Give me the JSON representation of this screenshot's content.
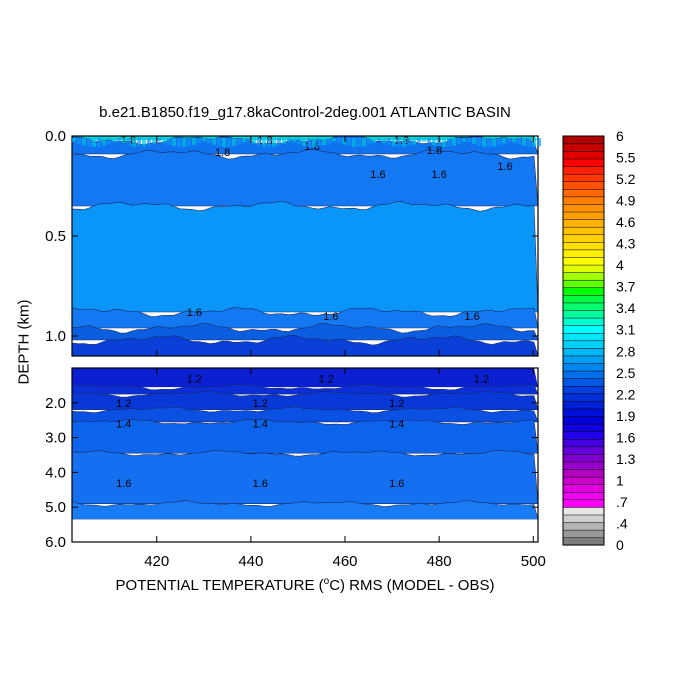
{
  "chart_data": {
    "type": "heatmap",
    "title": "b.e21.B1850.f19_g17.8kaControl-2deg.001 ATLANTIC BASIN",
    "xlabel_prefix": "POTENTIAL TEMPERATURE (",
    "xlabel_sup": "o",
    "xlabel_suffix": "C) RMS (MODEL - OBS)",
    "ylabel": "DEPTH (km)",
    "xlim": [
      402,
      501
    ],
    "xticks": [
      "420",
      "440",
      "460",
      "480",
      "500"
    ],
    "xtick_values": [
      420,
      440,
      460,
      480,
      500
    ],
    "upper_panel": {
      "ylim": [
        0.0,
        1.1
      ],
      "yticks": [
        "0.0",
        "0.5",
        "1.0"
      ],
      "ytick_values": [
        0.0,
        0.5,
        1.0
      ],
      "bands": [
        {
          "from": 0.0,
          "to": 0.02,
          "color": "#00d8d8"
        },
        {
          "from": 0.02,
          "to": 0.09,
          "color": "#0f72ee"
        },
        {
          "from": 0.09,
          "to": 0.35,
          "color": "#1478f2"
        },
        {
          "from": 0.35,
          "to": 0.88,
          "color": "#0a96f8"
        },
        {
          "from": 0.88,
          "to": 0.96,
          "color": "#1478f2"
        },
        {
          "from": 0.96,
          "to": 1.02,
          "color": "#0c5ee0"
        },
        {
          "from": 1.02,
          "to": 1.1,
          "color": "#0a40d8"
        }
      ],
      "contour_labels": [
        {
          "x": 414,
          "y": 0.02,
          "text": "1.8"
        },
        {
          "x": 434,
          "y": 0.08,
          "text": "1.8"
        },
        {
          "x": 443,
          "y": 0.02,
          "text": "1.8"
        },
        {
          "x": 453,
          "y": 0.05,
          "text": "1.6"
        },
        {
          "x": 472,
          "y": 0.02,
          "text": "1.8"
        },
        {
          "x": 467,
          "y": 0.19,
          "text": "1.6"
        },
        {
          "x": 479,
          "y": 0.07,
          "text": "1.8"
        },
        {
          "x": 480,
          "y": 0.19,
          "text": "1.6"
        },
        {
          "x": 494,
          "y": 0.15,
          "text": "1.6"
        },
        {
          "x": 428,
          "y": 0.88,
          "text": "1.6"
        },
        {
          "x": 457,
          "y": 0.9,
          "text": "1.6"
        },
        {
          "x": 487,
          "y": 0.9,
          "text": "1.6"
        }
      ]
    },
    "lower_panel": {
      "ylim": [
        1.0,
        6.0
      ],
      "yticks": [
        "2.0",
        "3.0",
        "4.0",
        "5.0",
        "6.0"
      ],
      "ytick_values": [
        2.0,
        3.0,
        4.0,
        5.0,
        6.0
      ],
      "data_bottom": 5.35,
      "bands": [
        {
          "from": 1.0,
          "to": 1.55,
          "color": "#0c20d2"
        },
        {
          "from": 1.55,
          "to": 1.75,
          "color": "#0a2ed8"
        },
        {
          "from": 1.75,
          "to": 2.2,
          "color": "#0838d8"
        },
        {
          "from": 2.2,
          "to": 2.55,
          "color": "#0a50e2"
        },
        {
          "from": 2.55,
          "to": 3.45,
          "color": "#0c64ec"
        },
        {
          "from": 3.45,
          "to": 4.9,
          "color": "#1470f0"
        },
        {
          "from": 4.9,
          "to": 5.35,
          "color": "#1a7cf4"
        }
      ],
      "contour_labels": [
        {
          "x": 428,
          "y": 1.3,
          "text": "1.2"
        },
        {
          "x": 456,
          "y": 1.3,
          "text": "1.2"
        },
        {
          "x": 489,
          "y": 1.3,
          "text": "1.2"
        },
        {
          "x": 413,
          "y": 2.0,
          "text": "1.2"
        },
        {
          "x": 442,
          "y": 2.0,
          "text": "1.2"
        },
        {
          "x": 471,
          "y": 2.0,
          "text": "1.2"
        },
        {
          "x": 413,
          "y": 2.6,
          "text": "1.4"
        },
        {
          "x": 442,
          "y": 2.6,
          "text": "1.4"
        },
        {
          "x": 471,
          "y": 2.6,
          "text": "1.4"
        },
        {
          "x": 413,
          "y": 4.3,
          "text": "1.6"
        },
        {
          "x": 442,
          "y": 4.3,
          "text": "1.6"
        },
        {
          "x": 471,
          "y": 4.3,
          "text": "1.6"
        }
      ]
    },
    "colorbar": {
      "min": 0,
      "max": 6,
      "levels": 54,
      "colors": [
        "#7d7d7d",
        "#9a9a9a",
        "#b3b3b3",
        "#cfcfcf",
        "#e6e6e6",
        "#ff00ff",
        "#ef00ef",
        "#e000e0",
        "#cc00cc",
        "#b300c0",
        "#9900cc",
        "#8000d0",
        "#6600d8",
        "#4400e0",
        "#2200e8",
        "#1000e0",
        "#0000d8",
        "#0010d8",
        "#0020d8",
        "#0030d8",
        "#0040e0",
        "#0058e6",
        "#0070ec",
        "#0088f0",
        "#00a0f4",
        "#00b8f6",
        "#00d0f8",
        "#00e6f8",
        "#00ffff",
        "#00ffd0",
        "#00ffa0",
        "#00ff70",
        "#00ff40",
        "#00ff00",
        "#60ff00",
        "#a0ff00",
        "#e0ff00",
        "#ffff00",
        "#fff000",
        "#ffe000",
        "#ffd000",
        "#ffc000",
        "#ffb000",
        "#ffa000",
        "#ff9000",
        "#ff8000",
        "#ff6800",
        "#ff5000",
        "#ff3800",
        "#ff2000",
        "#ff0000",
        "#e00000",
        "#c80000",
        "#b00000"
      ],
      "labels": [
        "6",
        "5.5",
        "5.2",
        "4.9",
        "4.6",
        "4.3",
        "4",
        "3.7",
        "3.4",
        "3.1",
        "2.8",
        "2.5",
        "2.2",
        "1.9",
        "1.6",
        "1.3",
        "1",
        ".7",
        ".4",
        "0"
      ],
      "label_values": [
        6,
        5.5,
        5.2,
        4.9,
        4.6,
        4.3,
        4.0,
        3.7,
        3.4,
        3.1,
        2.8,
        2.5,
        2.2,
        1.9,
        1.6,
        1.3,
        1.0,
        0.7,
        0.4,
        0
      ]
    }
  }
}
